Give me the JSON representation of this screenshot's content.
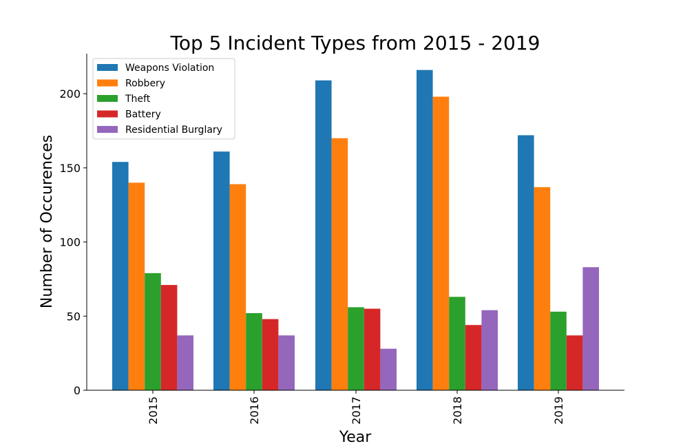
{
  "chart_data": {
    "type": "bar",
    "title": "Top 5 Incident Types from 2015 - 2019",
    "xlabel": "Year",
    "ylabel": "Number of Occurences",
    "categories": [
      "2015",
      "2016",
      "2017",
      "2018",
      "2019"
    ],
    "series": [
      {
        "name": "Weapons Violation",
        "color": "#1f77b4",
        "values": [
          154,
          161,
          209,
          216,
          172
        ]
      },
      {
        "name": "Robbery",
        "color": "#ff7f0e",
        "values": [
          140,
          139,
          170,
          198,
          137
        ]
      },
      {
        "name": "Theft",
        "color": "#2ca02c",
        "values": [
          79,
          52,
          56,
          63,
          53
        ]
      },
      {
        "name": "Battery",
        "color": "#d62728",
        "values": [
          71,
          48,
          55,
          44,
          37
        ]
      },
      {
        "name": "Residential Burglary",
        "color": "#9467bd",
        "values": [
          37,
          37,
          28,
          54,
          83
        ]
      }
    ],
    "ylim": [
      0,
      227
    ],
    "yticks": [
      "0",
      "50",
      "100",
      "150",
      "200"
    ],
    "xtick_rotation": "vertical",
    "legend_position": "top-left",
    "grid": false
  }
}
